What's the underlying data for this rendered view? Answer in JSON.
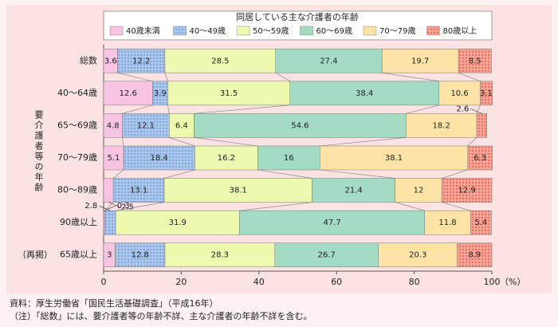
{
  "chart_data": {
    "type": "stacked-bar-horizontal",
    "legend_title": "同居している主な介護者の年齢",
    "y_axis_label": "要介護者等の年齢",
    "categories": [
      "総数",
      "40～64歳",
      "65～69歳",
      "70～79歳",
      "80～89歳",
      "90歳以上",
      "65歳以上"
    ],
    "category_prefix": "（再掲）",
    "series": [
      {
        "name": "40歳未満",
        "color": "#f8c4e2",
        "values": [
          3.6,
          12.6,
          4.8,
          5.1,
          2.5,
          0.3,
          3.0
        ]
      },
      {
        "name": "40～49歳",
        "color": "#a9c6ec",
        "values": [
          12.2,
          3.9,
          12.1,
          18.4,
          13.1,
          2.8,
          12.8
        ]
      },
      {
        "name": "50～59歳",
        "color": "#eef9b0",
        "values": [
          28.5,
          31.5,
          6.4,
          16.2,
          38.1,
          31.9,
          28.3
        ]
      },
      {
        "name": "60～69歳",
        "color": "#a3dcc3",
        "values": [
          27.4,
          38.4,
          54.6,
          16.0,
          21.4,
          47.7,
          26.7
        ]
      },
      {
        "name": "70～79歳",
        "color": "#fde3a6",
        "values": [
          19.7,
          10.6,
          18.2,
          38.1,
          12.0,
          11.8,
          20.3
        ]
      },
      {
        "name": "80歳以上",
        "color": "#f7a394",
        "values": [
          8.5,
          3.1,
          2.6,
          6.3,
          12.9,
          5.4,
          8.9
        ]
      }
    ],
    "xlim": [
      0,
      100
    ],
    "xticks": [
      0,
      20,
      40,
      60,
      80,
      100
    ],
    "x_unit": "（%）",
    "source": "資料：厚生労働省「国民生活基礎調査」（平成16年）",
    "note": "（注）「総数」には、要介護者等の年齢不詳、主な介護者の年齢不詳を含む。"
  }
}
